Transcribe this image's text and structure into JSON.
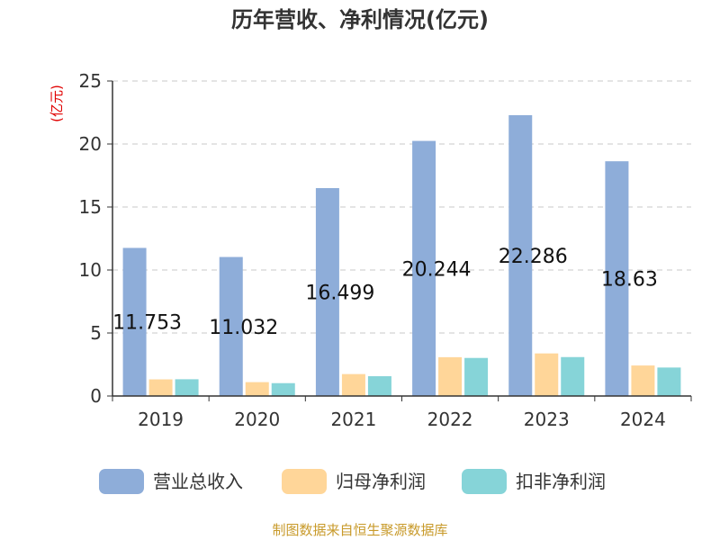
{
  "chart_data": {
    "type": "bar",
    "title": "历年营收、净利情况(亿元)",
    "ylabel": "(亿元)",
    "ylim": [
      0,
      25
    ],
    "yticks": [
      0,
      5,
      10,
      15,
      20,
      25
    ],
    "grid": true,
    "legend_position": "bottom",
    "categories": [
      "2019",
      "2020",
      "2021",
      "2022",
      "2023",
      "2024"
    ],
    "series": [
      {
        "name": "营业总收入",
        "color": "#8eadd9",
        "values": [
          11.753,
          11.032,
          16.499,
          20.244,
          22.286,
          18.63
        ]
      },
      {
        "name": "归母净利润",
        "color": "#ffd699",
        "values": [
          1.32,
          1.1,
          1.74,
          3.08,
          3.38,
          2.42
        ]
      },
      {
        "name": "扣非净利润",
        "color": "#86d4d8",
        "values": [
          1.33,
          1.02,
          1.57,
          3.02,
          3.09,
          2.26
        ]
      }
    ],
    "data_labels": [
      "11.753",
      "11.032",
      "16.499",
      "20.244",
      "22.286",
      "18.63"
    ]
  },
  "source": "制图数据来自恒生聚源数据库"
}
